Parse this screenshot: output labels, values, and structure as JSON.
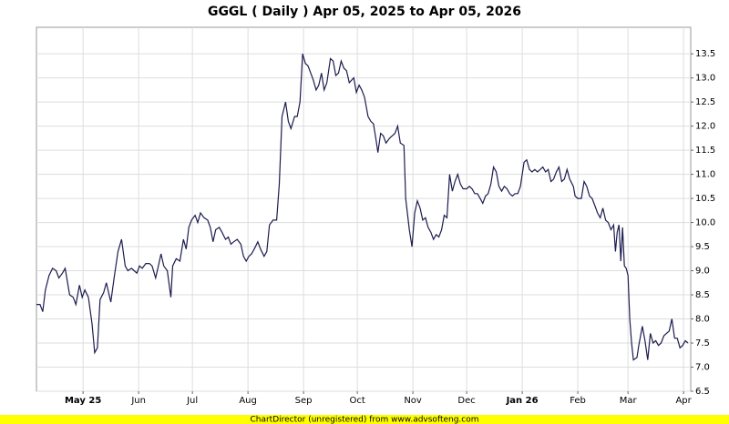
{
  "chart_data": {
    "type": "line",
    "title": "GGGL ( Daily ) Apr 05, 2025 to Apr 05, 2026",
    "footer": "ChartDirector (unregistered) from www.advsofteng.com",
    "grid": true,
    "xlim": [
      0,
      365
    ],
    "xticks": [
      {
        "value": 26,
        "label": "May 25"
      },
      {
        "value": 57,
        "label": "Jun"
      },
      {
        "value": 87,
        "label": "Jul"
      },
      {
        "value": 118,
        "label": "Aug"
      },
      {
        "value": 149,
        "label": "Sep"
      },
      {
        "value": 179,
        "label": "Oct"
      },
      {
        "value": 210,
        "label": "Nov"
      },
      {
        "value": 240,
        "label": "Dec"
      },
      {
        "value": 271,
        "label": "Jan 26"
      },
      {
        "value": 302,
        "label": "Feb"
      },
      {
        "value": 330,
        "label": "Mar"
      },
      {
        "value": 361,
        "label": "Apr"
      }
    ],
    "ylim": [
      6.5,
      14.05
    ],
    "yticks": [
      6.5,
      {
        "value": 7,
        "label": "7.0"
      },
      7.5,
      {
        "value": 8,
        "label": "8.0"
      },
      8.5,
      {
        "value": 9,
        "label": "9.0"
      },
      9.5,
      {
        "value": 10,
        "label": "10.0"
      },
      10.5,
      {
        "value": 11,
        "label": "11.0"
      },
      11.5,
      {
        "value": 12,
        "label": "12.0"
      },
      12.5,
      {
        "value": 13,
        "label": "13.0"
      },
      13.5
    ],
    "series": [
      {
        "color": "#1c1c50",
        "x": [
          0,
          2,
          3.5,
          5,
          7,
          9,
          11,
          12.5,
          14.5,
          16,
          18.5,
          20.5,
          22,
          24,
          25.5,
          27,
          29,
          31,
          32.5,
          34,
          35.5,
          37.5,
          39,
          41.5,
          43.5,
          45.5,
          47.5,
          49.5,
          51,
          53,
          54.5,
          56,
          57.5,
          59,
          61,
          63,
          64.5,
          66.5,
          68,
          69.5,
          71,
          73,
          75,
          76,
          78,
          80,
          82,
          83.5,
          85,
          86.5,
          88.5,
          90,
          91.5,
          93.5,
          95.5,
          97,
          98.5,
          100,
          102,
          103.5,
          105.5,
          107,
          108.5,
          110,
          112,
          114,
          115.5,
          117,
          118.5,
          120,
          121.5,
          123.5,
          125,
          127,
          128.5,
          130,
          132,
          134,
          135.5,
          137,
          139,
          140.5,
          142,
          144,
          145.5,
          147,
          148.5,
          150,
          151.5,
          153,
          154.5,
          156,
          157.5,
          159,
          160.5,
          162,
          164,
          165.5,
          167,
          168.5,
          170,
          171.5,
          173,
          174.5,
          177,
          178.5,
          180,
          181.5,
          183,
          185,
          186.5,
          188,
          189.5,
          190.5,
          192,
          193.5,
          195,
          197,
          198.5,
          200,
          201.5,
          203,
          205,
          206,
          208,
          209.5,
          211,
          212.5,
          214,
          215.5,
          217,
          218.5,
          220,
          221.5,
          223,
          224.5,
          226,
          227.5,
          229,
          230.5,
          232,
          233.5,
          235,
          236.5,
          238,
          240,
          241.5,
          243,
          244.5,
          246,
          247.5,
          249,
          250.5,
          252,
          253.5,
          255,
          256.5,
          258,
          259.5,
          261,
          262.5,
          264,
          265.5,
          267,
          268.5,
          270,
          272,
          273.5,
          275,
          276.5,
          278,
          279.5,
          281,
          282.5,
          284,
          285.5,
          287,
          288.5,
          290,
          291.5,
          293,
          294.5,
          296,
          297.5,
          299.5,
          300.5,
          302,
          304,
          305.5,
          307,
          308.5,
          310,
          311.5,
          313,
          314.5,
          316,
          317.5,
          319,
          320.5,
          322,
          323,
          324,
          325,
          326,
          327,
          328,
          329,
          330,
          331,
          332,
          333,
          335,
          336,
          338,
          339.5,
          341,
          342.5,
          344,
          345.5,
          347,
          348.5,
          350,
          351.5,
          353,
          354.5,
          356,
          357.5,
          359,
          360.5,
          362,
          363.5
        ],
        "values": [
          8.3,
          8.3,
          8.15,
          8.6,
          8.9,
          9.05,
          9.0,
          8.85,
          8.95,
          9.05,
          8.5,
          8.45,
          8.3,
          8.7,
          8.45,
          8.6,
          8.45,
          7.9,
          7.3,
          7.4,
          8.4,
          8.55,
          8.75,
          8.35,
          8.9,
          9.4,
          9.65,
          9.1,
          9.0,
          9.05,
          9.0,
          8.95,
          9.1,
          9.05,
          9.15,
          9.15,
          9.1,
          8.85,
          9.1,
          9.35,
          9.1,
          9.0,
          8.45,
          9.1,
          9.25,
          9.2,
          9.65,
          9.45,
          9.9,
          10.05,
          10.15,
          10.0,
          10.2,
          10.1,
          10.05,
          9.9,
          9.6,
          9.85,
          9.9,
          9.8,
          9.65,
          9.7,
          9.55,
          9.6,
          9.65,
          9.55,
          9.3,
          9.2,
          9.3,
          9.35,
          9.45,
          9.6,
          9.45,
          9.3,
          9.4,
          9.95,
          10.05,
          10.05,
          10.8,
          12.2,
          12.5,
          12.1,
          11.95,
          12.2,
          12.2,
          12.5,
          13.5,
          13.3,
          13.25,
          13.1,
          12.95,
          12.75,
          12.85,
          13.1,
          12.75,
          12.9,
          13.4,
          13.35,
          13.05,
          13.1,
          13.35,
          13.2,
          13.15,
          12.9,
          13.0,
          12.7,
          12.85,
          12.75,
          12.6,
          12.2,
          12.1,
          12.05,
          11.7,
          11.45,
          11.85,
          11.8,
          11.65,
          11.75,
          11.8,
          11.85,
          12.0,
          11.65,
          11.6,
          10.5,
          9.85,
          9.5,
          10.2,
          10.45,
          10.3,
          10.05,
          10.1,
          9.9,
          9.8,
          9.65,
          9.75,
          9.7,
          9.85,
          10.15,
          10.1,
          11.0,
          10.65,
          10.85,
          11.0,
          10.8,
          10.7,
          10.7,
          10.75,
          10.7,
          10.6,
          10.6,
          10.5,
          10.4,
          10.55,
          10.6,
          10.8,
          11.15,
          11.05,
          10.75,
          10.65,
          10.75,
          10.7,
          10.6,
          10.55,
          10.6,
          10.6,
          10.75,
          11.25,
          11.3,
          11.1,
          11.05,
          11.1,
          11.05,
          11.1,
          11.15,
          11.05,
          11.1,
          10.85,
          10.9,
          11.05,
          11.15,
          10.85,
          10.9,
          11.1,
          10.9,
          10.75,
          10.55,
          10.5,
          10.5,
          10.85,
          10.75,
          10.55,
          10.5,
          10.35,
          10.2,
          10.1,
          10.3,
          10.05,
          10.0,
          9.85,
          9.95,
          9.4,
          9.8,
          9.95,
          9.2,
          9.9,
          9.1,
          9.05,
          8.9,
          8.0,
          7.5,
          7.15,
          7.2,
          7.45,
          7.85,
          7.55,
          7.15,
          7.7,
          7.5,
          7.55,
          7.45,
          7.5,
          7.65,
          7.7,
          7.75,
          8.0,
          7.6,
          7.6,
          7.4,
          7.45,
          7.55,
          7.5
        ]
      }
    ]
  }
}
